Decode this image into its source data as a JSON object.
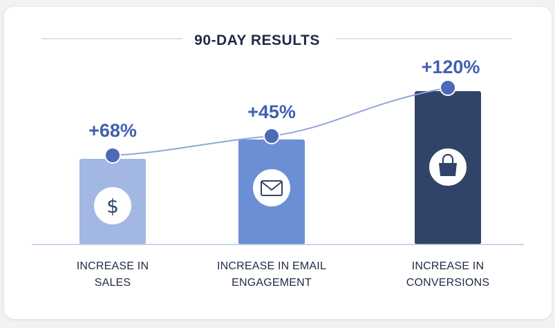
{
  "chart_data": {
    "type": "bar",
    "title": "90-DAY RESULTS",
    "categories": [
      "INCREASE IN SALES",
      "INCREASE IN EMAIL ENGAGEMENT",
      "INCREASE IN CONVERSIONS"
    ],
    "category_lines": [
      [
        "INCREASE IN",
        "SALES"
      ],
      [
        "INCREASE IN EMAIL",
        "ENGAGEMENT"
      ],
      [
        "INCREASE IN",
        "CONVERSIONS"
      ]
    ],
    "values": [
      68,
      45,
      120
    ],
    "value_labels": [
      "+68%",
      "+45%",
      "+120%"
    ],
    "unit": "%",
    "icons": [
      "dollar-icon",
      "envelope-icon",
      "shopping-bag-icon"
    ],
    "trend_line": true,
    "grid": false,
    "legend": "none"
  },
  "colors": {
    "bars": [
      "#a2b7e2",
      "#6b8fd4",
      "#2f4468"
    ],
    "trend": "#8fa6d8",
    "markers": "#4d6ab8",
    "value_text": "#4060b0",
    "title_text": "#1f2a44",
    "label_text": "#1f2a44",
    "baseline": "#b9c6e2"
  }
}
